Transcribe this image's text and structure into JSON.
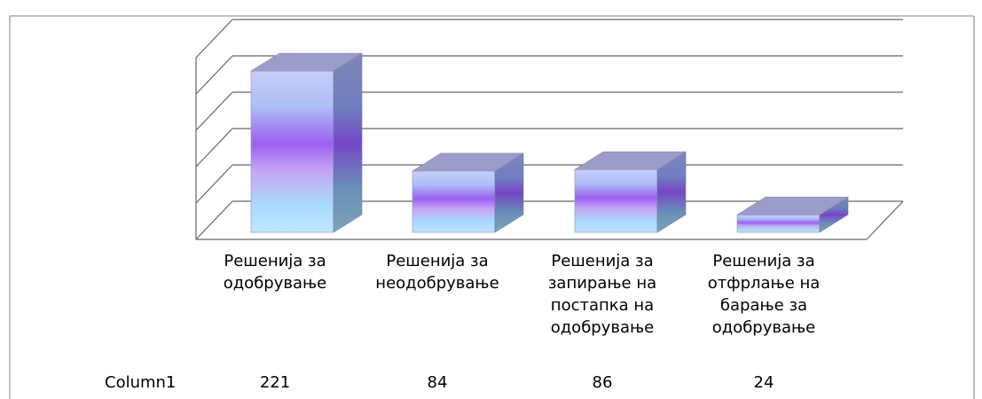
{
  "chart_data": {
    "type": "bar",
    "categories": [
      "Решенија за\nодобрување",
      "Решенија за\nнеодобрување",
      "Решенија  за\nзапирање на\nпостапка на\nодобрување",
      "Решенија за\nотфрлање на\nбарање за\nодобрување"
    ],
    "series": [
      {
        "name": "Column1",
        "values": [
          221,
          84,
          86,
          24
        ]
      }
    ],
    "title": "",
    "xlabel": "",
    "ylabel": "",
    "ylim": [
      0,
      250
    ],
    "grid": true,
    "legend": "none",
    "data_table": true
  },
  "colors": {
    "bar_top": "#9a9ac8",
    "bar_light": "#bfe6ff",
    "bar_mid": "#9b5ff0",
    "bar_side": "#6a80b0",
    "grid": "#555555"
  }
}
